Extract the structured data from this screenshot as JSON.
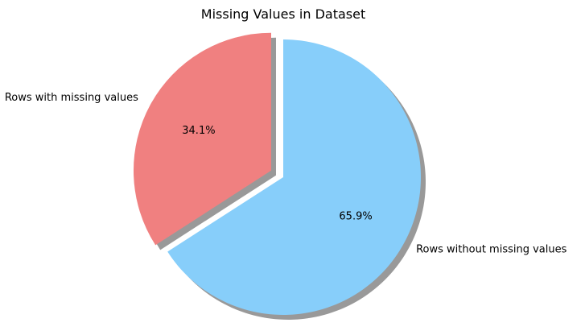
{
  "chart_data": {
    "type": "pie",
    "title": "Missing Values in Dataset",
    "autopct_format": "{v}%",
    "start_angle_deg": 90,
    "direction": "counterclockwise",
    "shadow": true,
    "slices": [
      {
        "label": "Rows with missing values",
        "value": 34.1,
        "percent_label": "34.1%",
        "color": "#f08080",
        "exploded": true
      },
      {
        "label": "Rows without missing values",
        "value": 65.9,
        "percent_label": "65.9%",
        "color": "#87cefa",
        "exploded": false
      }
    ]
  }
}
